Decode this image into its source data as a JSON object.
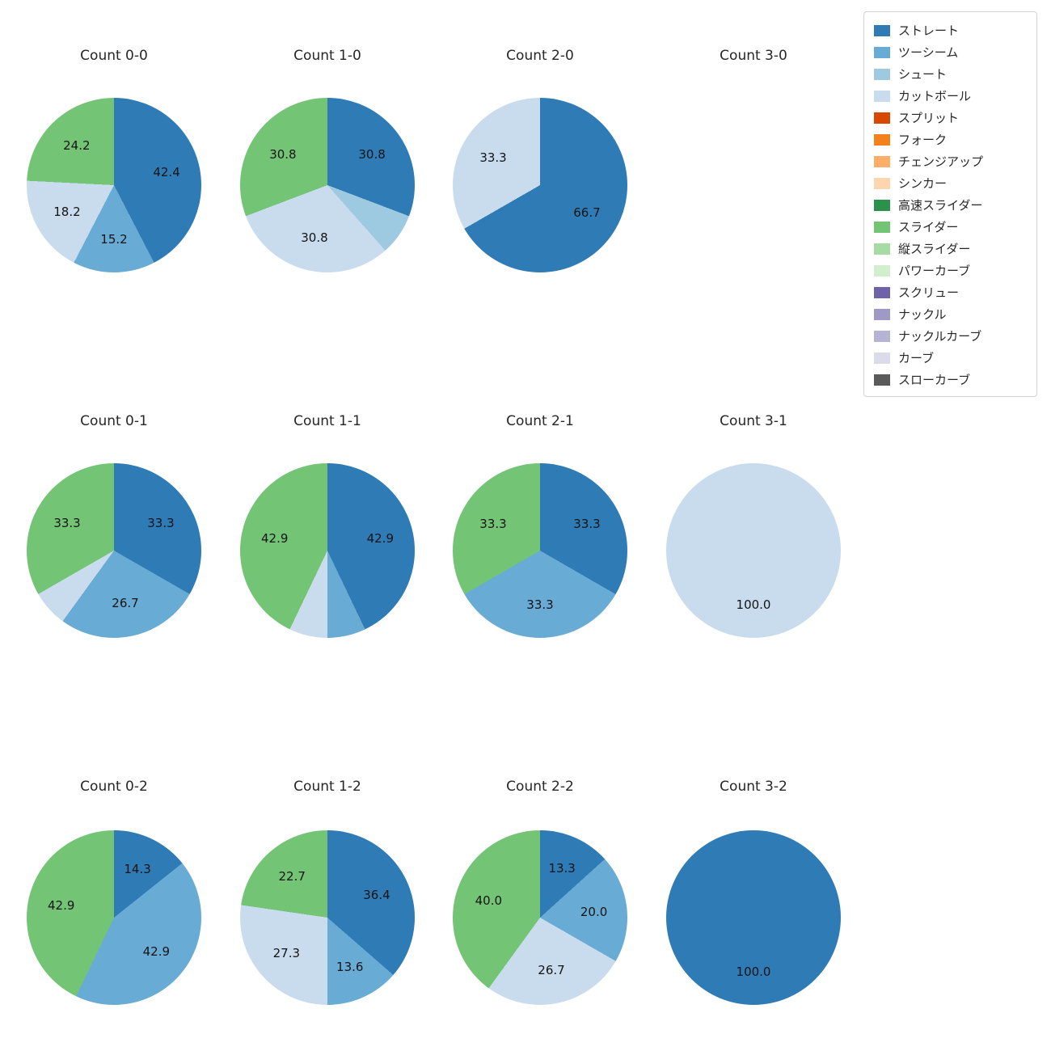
{
  "legend": {
    "items": [
      {
        "label": "ストレート",
        "color": "#2f7bb5"
      },
      {
        "label": "ツーシーム",
        "color": "#68abd4"
      },
      {
        "label": "シュート",
        "color": "#9ecae1"
      },
      {
        "label": "カットボール",
        "color": "#c9dcee"
      },
      {
        "label": "スプリット",
        "color": "#d94801"
      },
      {
        "label": "フォーク",
        "color": "#f3811d"
      },
      {
        "label": "チェンジアップ",
        "color": "#fdae6b"
      },
      {
        "label": "シンカー",
        "color": "#fdd5ae"
      },
      {
        "label": "高速スライダー",
        "color": "#2a924a"
      },
      {
        "label": "スライダー",
        "color": "#74c476"
      },
      {
        "label": "縦スライダー",
        "color": "#a6dba4"
      },
      {
        "label": "パワーカーブ",
        "color": "#d2efcd"
      },
      {
        "label": "スクリュー",
        "color": "#6f62a8"
      },
      {
        "label": "ナックル",
        "color": "#9e99c7"
      },
      {
        "label": "ナックルカーブ",
        "color": "#b6b3d6"
      },
      {
        "label": "カーブ",
        "color": "#dcdbe9"
      },
      {
        "label": "スローカーブ",
        "color": "#5a5a5a"
      }
    ]
  },
  "chart_data": [
    {
      "type": "pie",
      "title": "Count 0-0",
      "slices": [
        {
          "name": "ストレート",
          "value": 42.4,
          "label": "42.4"
        },
        {
          "name": "ツーシーム",
          "value": 15.2,
          "label": "15.2"
        },
        {
          "name": "カットボール",
          "value": 18.2,
          "label": "18.2"
        },
        {
          "name": "スライダー",
          "value": 24.2,
          "label": "24.2"
        }
      ]
    },
    {
      "type": "pie",
      "title": "Count 1-0",
      "slices": [
        {
          "name": "ストレート",
          "value": 30.8,
          "label": "30.8"
        },
        {
          "name": "シュート",
          "value": 7.7,
          "label": ""
        },
        {
          "name": "カットボール",
          "value": 30.8,
          "label": "30.8"
        },
        {
          "name": "スライダー",
          "value": 30.8,
          "label": "30.8"
        }
      ]
    },
    {
      "type": "pie",
      "title": "Count 2-0",
      "slices": [
        {
          "name": "ストレート",
          "value": 66.7,
          "label": "66.7"
        },
        {
          "name": "カットボール",
          "value": 33.3,
          "label": "33.3"
        }
      ]
    },
    {
      "type": "pie",
      "title": "Count 3-0",
      "slices": []
    },
    {
      "type": "pie",
      "title": "Count 0-1",
      "slices": [
        {
          "name": "ストレート",
          "value": 33.3,
          "label": "33.3"
        },
        {
          "name": "ツーシーム",
          "value": 26.7,
          "label": "26.7"
        },
        {
          "name": "カットボール",
          "value": 6.7,
          "label": ""
        },
        {
          "name": "スライダー",
          "value": 33.3,
          "label": "33.3"
        }
      ]
    },
    {
      "type": "pie",
      "title": "Count 1-1",
      "slices": [
        {
          "name": "ストレート",
          "value": 42.9,
          "label": "42.9"
        },
        {
          "name": "ツーシーム",
          "value": 7.1,
          "label": ""
        },
        {
          "name": "カットボール",
          "value": 7.1,
          "label": ""
        },
        {
          "name": "スライダー",
          "value": 42.9,
          "label": "42.9"
        }
      ]
    },
    {
      "type": "pie",
      "title": "Count 2-1",
      "slices": [
        {
          "name": "ストレート",
          "value": 33.3,
          "label": "33.3"
        },
        {
          "name": "ツーシーム",
          "value": 33.3,
          "label": "33.3"
        },
        {
          "name": "スライダー",
          "value": 33.3,
          "label": "33.3"
        }
      ]
    },
    {
      "type": "pie",
      "title": "Count 3-1",
      "slices": [
        {
          "name": "カットボール",
          "value": 100.0,
          "label": "100.0"
        }
      ]
    },
    {
      "type": "pie",
      "title": "Count 0-2",
      "slices": [
        {
          "name": "ストレート",
          "value": 14.3,
          "label": "14.3"
        },
        {
          "name": "ツーシーム",
          "value": 42.9,
          "label": "42.9"
        },
        {
          "name": "スライダー",
          "value": 42.9,
          "label": "42.9"
        }
      ]
    },
    {
      "type": "pie",
      "title": "Count 1-2",
      "slices": [
        {
          "name": "ストレート",
          "value": 36.4,
          "label": "36.4"
        },
        {
          "name": "ツーシーム",
          "value": 13.6,
          "label": "13.6"
        },
        {
          "name": "カットボール",
          "value": 27.3,
          "label": "27.3"
        },
        {
          "name": "スライダー",
          "value": 22.7,
          "label": "22.7"
        }
      ]
    },
    {
      "type": "pie",
      "title": "Count 2-2",
      "slices": [
        {
          "name": "ストレート",
          "value": 13.3,
          "label": "13.3"
        },
        {
          "name": "ツーシーム",
          "value": 20.0,
          "label": "20.0"
        },
        {
          "name": "カットボール",
          "value": 26.7,
          "label": "26.7"
        },
        {
          "name": "スライダー",
          "value": 40.0,
          "label": "40.0"
        }
      ]
    },
    {
      "type": "pie",
      "title": "Count 3-2",
      "slices": [
        {
          "name": "ストレート",
          "value": 100.0,
          "label": "100.0"
        }
      ]
    }
  ]
}
